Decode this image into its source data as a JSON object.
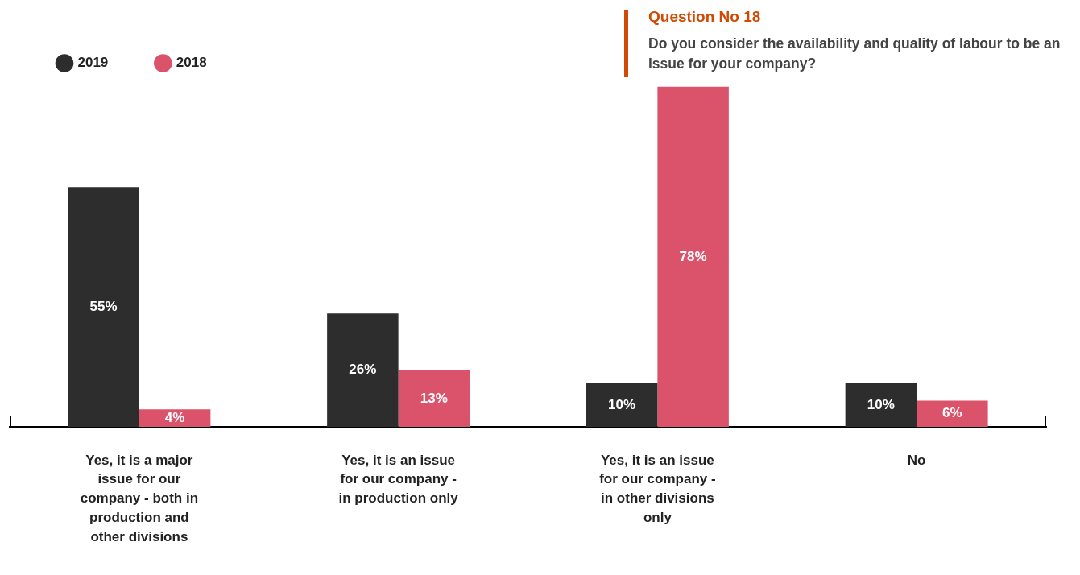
{
  "chart_data": {
    "type": "bar",
    "title": "Question No 18",
    "subtitle": "Do you consider the availability and quality of labour to be an issue for your company?",
    "categories": [
      "Yes, it is a major issue for our company - both in production and other divisions",
      "Yes, it is an issue for our company - in production only",
      "Yes, it is an issue for our company - in other divisions only",
      "No"
    ],
    "series": [
      {
        "name": "2019",
        "color": "#2d2d2d",
        "values": [
          55,
          26,
          10,
          10
        ],
        "value_labels": [
          "55%",
          "26%",
          "10%",
          "10%"
        ]
      },
      {
        "name": "2018",
        "color": "#db536a",
        "values": [
          4,
          13,
          78,
          6
        ],
        "value_labels": [
          "4%",
          "13%",
          "78%",
          "6%"
        ]
      }
    ],
    "legend": "top left",
    "grid": false
  }
}
